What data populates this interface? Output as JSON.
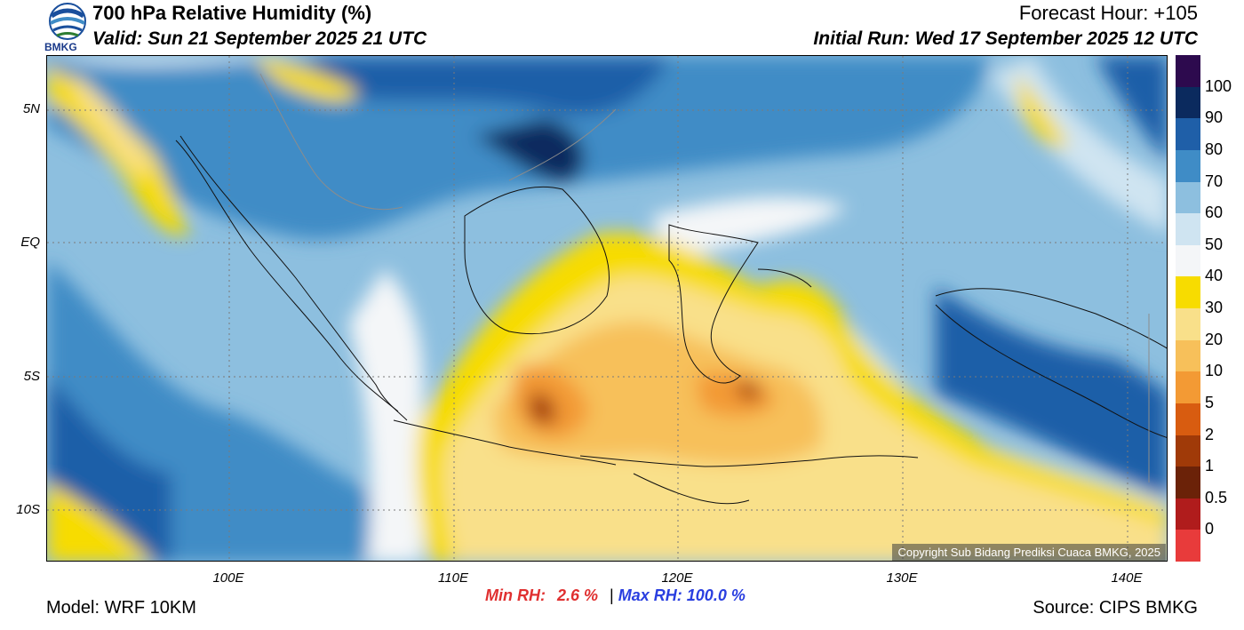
{
  "header": {
    "title": "700 hPa Relative Humidity (%)",
    "valid": "Valid: Sun 21 September 2025 21 UTC",
    "forecast_hour": "Forecast Hour: +105",
    "initial_run": "Initial Run: Wed 17 September 2025 12 UTC",
    "logo_text": "BMKG"
  },
  "axes": {
    "lat_labels": [
      "5N",
      "EQ",
      "5S",
      "10S"
    ],
    "lon_labels": [
      "100E",
      "110E",
      "120E",
      "130E",
      "140E"
    ]
  },
  "colorbar": {
    "labels": [
      "100",
      "90",
      "80",
      "70",
      "60",
      "50",
      "40",
      "30",
      "20",
      "10",
      "5",
      "2",
      "1",
      "0.5",
      "0"
    ],
    "colors": [
      "#2d0a4e",
      "#0b2a5e",
      "#1f5fa8",
      "#3f8cc6",
      "#8dbfdf",
      "#cfe4f1",
      "#f4f6f8",
      "#f7dc00",
      "#f9e08a",
      "#f7c05a",
      "#f39a34",
      "#d85c10",
      "#a03a08",
      "#6b2208",
      "#b01c1c",
      "#e83b3b"
    ]
  },
  "stats": {
    "min_label": "Min RH:",
    "min_value": "2.6 %",
    "separator": "|",
    "max_label": "Max RH:",
    "max_value": "100.0 %"
  },
  "footer": {
    "model": "Model: WRF 10KM",
    "source": "Source: CIPS BMKG",
    "copyright": "Copyright Sub Bidang Prediksi Cuaca BMKG, 2025"
  }
}
